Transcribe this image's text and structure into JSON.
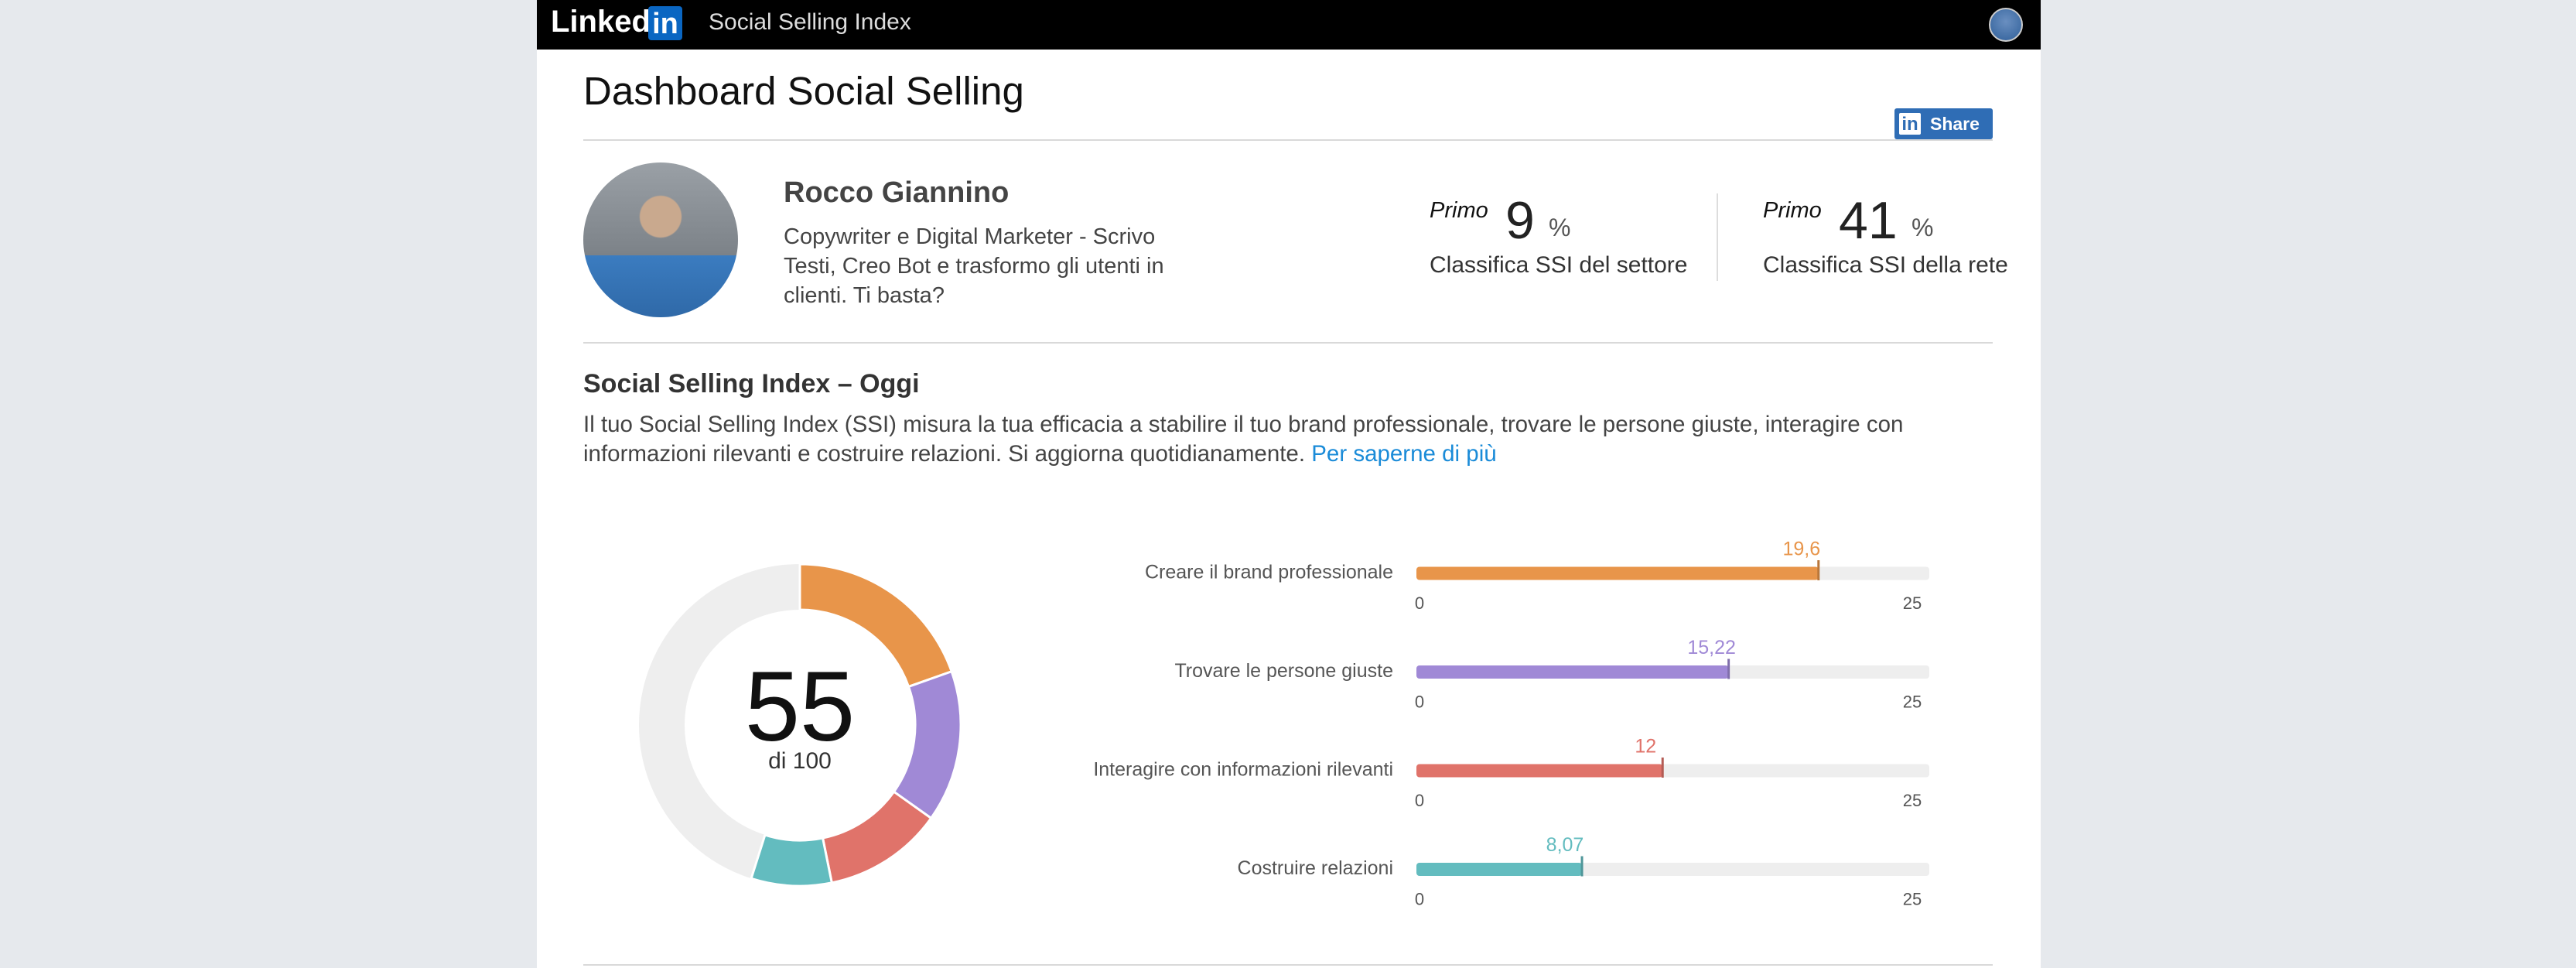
{
  "header": {
    "logo_text": "Linked",
    "logo_box": "in",
    "app_title": "Social Selling Index"
  },
  "page": {
    "title": "Dashboard Social Selling",
    "share": "Share"
  },
  "profile": {
    "name": "Rocco Giannino",
    "headline": "Copywriter e Digital Marketer - Scrivo Testi, Creo Bot e trasformo gli utenti in clienti. Ti basta?"
  },
  "stats": [
    {
      "prefix": "Primo",
      "value": 9,
      "unit": "%",
      "label": "Classifica SSI del settore"
    },
    {
      "prefix": "Primo",
      "value": 41,
      "unit": "%",
      "label": "Classifica SSI della rete"
    }
  ],
  "section": {
    "title": "Social Selling Index – Oggi",
    "text": "Il tuo Social Selling Index (SSI) misura la tua efficacia a stabilire il tuo brand professionale, trovare le persone giuste, interagire con informazioni rilevanti e costruire relazioni. Si aggiorna quotidianamente.",
    "link": "Per saperne di più"
  },
  "chart_data": {
    "type": "bar",
    "orientation": "horizontal",
    "categories": [
      "Creare il brand professionale",
      "Trovare le persone giuste",
      "Interagire con informazioni rilevanti",
      "Costruire relazioni"
    ],
    "values": [
      19.6,
      15.22,
      12,
      8.07
    ],
    "value_labels": [
      "19,6",
      "15,22",
      "12",
      "8,07"
    ],
    "colors": [
      "#e8954a",
      "#a089d6",
      "#e0736a",
      "#63bcbf"
    ],
    "xlim": [
      0,
      25
    ],
    "xticks": [
      0,
      25
    ],
    "donut": {
      "total": 55,
      "total_label": "di 100",
      "lim": [
        0,
        100
      ]
    }
  }
}
